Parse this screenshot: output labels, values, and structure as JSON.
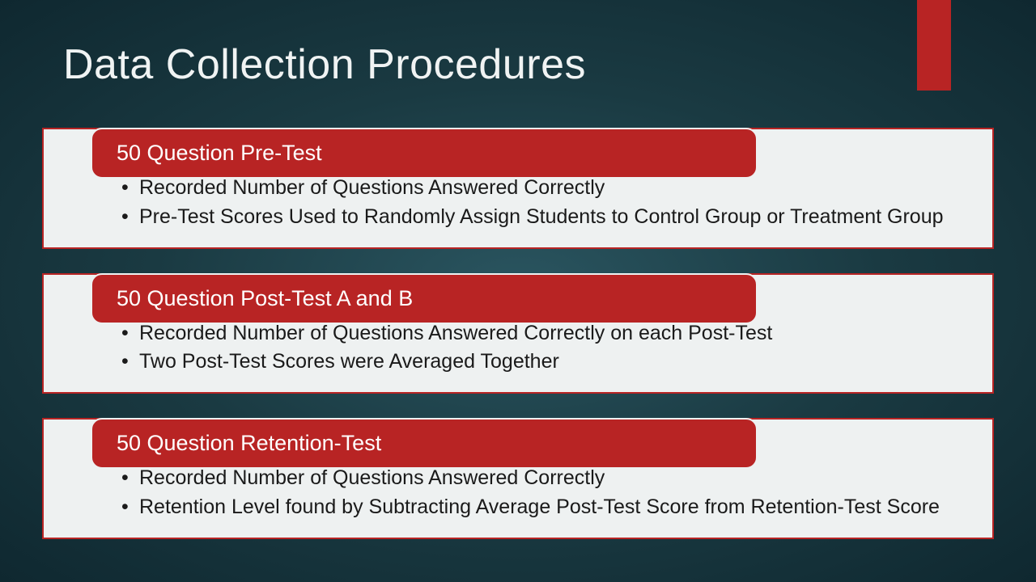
{
  "title": "Data Collection Procedures",
  "colors": {
    "accent": "#b82424",
    "card_bg": "#eef1f1",
    "title_text": "#f0f3f3",
    "body_text": "#1a1a1a"
  },
  "sections": [
    {
      "header": "50 Question Pre-Test",
      "bullets": [
        "Recorded Number of Questions Answered Correctly",
        "Pre-Test Scores Used to Randomly Assign Students to Control Group or Treatment Group"
      ]
    },
    {
      "header": "50 Question Post-Test A and B",
      "bullets": [
        "Recorded Number of Questions Answered Correctly on each Post-Test",
        "Two Post-Test Scores were Averaged Together"
      ]
    },
    {
      "header": "50 Question Retention-Test",
      "bullets": [
        "Recorded Number of Questions Answered Correctly",
        "Retention Level found by Subtracting Average Post-Test Score from Retention-Test Score"
      ]
    }
  ]
}
